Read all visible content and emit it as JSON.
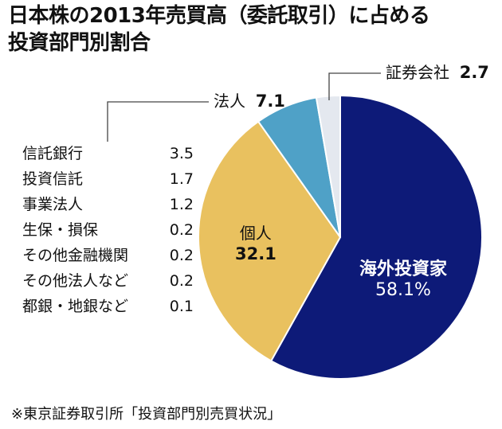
{
  "title": {
    "line1": "日本株の2013年売買高（委託取引）に占める",
    "line2": "投資部門別割合"
  },
  "chart_data": {
    "type": "pie",
    "categories": [
      "海外投資家",
      "個人",
      "法人",
      "証券会社"
    ],
    "values": [
      58.1,
      32.1,
      7.1,
      2.7
    ],
    "display_values": [
      "58.1%",
      "32.1",
      "7.1",
      "2.7"
    ],
    "colors": [
      "#0d1a78",
      "#e9c15f",
      "#4fa1c7",
      "#e4e8ef"
    ],
    "start": "12 o'clock, clockwise",
    "corporate_breakdown": [
      {
        "name": "信託銀行",
        "value": "3.5"
      },
      {
        "name": "投資信託",
        "value": "1.7"
      },
      {
        "name": "事業法人",
        "value": "1.2"
      },
      {
        "name": "生保・損保",
        "value": "0.2"
      },
      {
        "name": "その他金融機関",
        "value": "0.2"
      },
      {
        "name": "その他法人など",
        "value": "0.2"
      },
      {
        "name": "都銀・地銀など",
        "value": "0.1"
      }
    ]
  },
  "source": "※東京証券取引所「投資部門別売買状況」"
}
